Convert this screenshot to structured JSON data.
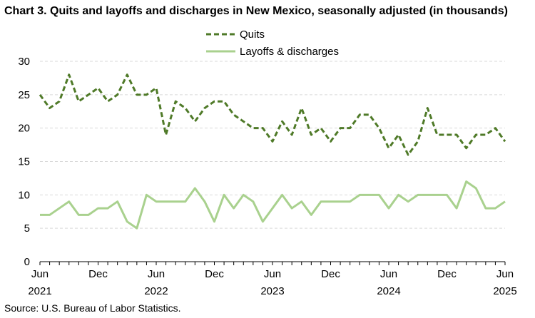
{
  "chart_data": {
    "type": "line",
    "title": "Chart 3. Quits and layoffs and discharges in New Mexico, seasonally adjusted (in thousands)",
    "source": "Source: U.S. Bureau of Labor Statistics.",
    "ylim": [
      0,
      30
    ],
    "yticks": [
      "0",
      "5",
      "10",
      "15",
      "20",
      "25",
      "30"
    ],
    "grid": true,
    "legend_placement": "top-center",
    "x_tick_labels": [
      {
        "index": 0,
        "month": "Jun",
        "year": "2021"
      },
      {
        "index": 6,
        "month": "Dec",
        "year": ""
      },
      {
        "index": 12,
        "month": "Jun",
        "year": "2022"
      },
      {
        "index": 18,
        "month": "Dec",
        "year": ""
      },
      {
        "index": 24,
        "month": "Jun",
        "year": "2023"
      },
      {
        "index": 30,
        "month": "Dec",
        "year": ""
      },
      {
        "index": 36,
        "month": "Jun",
        "year": "2024"
      },
      {
        "index": 42,
        "month": "Dec",
        "year": ""
      },
      {
        "index": 48,
        "month": "Jun",
        "year": "2025"
      }
    ],
    "x": [
      "2021-06",
      "2021-07",
      "2021-08",
      "2021-09",
      "2021-10",
      "2021-11",
      "2021-12",
      "2022-01",
      "2022-02",
      "2022-03",
      "2022-04",
      "2022-05",
      "2022-06",
      "2022-07",
      "2022-08",
      "2022-09",
      "2022-10",
      "2022-11",
      "2022-12",
      "2023-01",
      "2023-02",
      "2023-03",
      "2023-04",
      "2023-05",
      "2023-06",
      "2023-07",
      "2023-08",
      "2023-09",
      "2023-10",
      "2023-11",
      "2023-12",
      "2024-01",
      "2024-02",
      "2024-03",
      "2024-04",
      "2024-05",
      "2024-06",
      "2024-07",
      "2024-08",
      "2024-09",
      "2024-10",
      "2024-11",
      "2024-12",
      "2025-01",
      "2025-02",
      "2025-03",
      "2025-04",
      "2025-05",
      "2025-06"
    ],
    "series": [
      {
        "name": "Quits",
        "color": "#4f7a28",
        "style": "dashed",
        "values": [
          25,
          23,
          24,
          28,
          24,
          25,
          26,
          24,
          25,
          28,
          25,
          25,
          26,
          19,
          24,
          23,
          21,
          23,
          24,
          24,
          22,
          21,
          20,
          20,
          18,
          21,
          19,
          23,
          19,
          20,
          18,
          20,
          20,
          22,
          22,
          20,
          17,
          19,
          16,
          18,
          23,
          19,
          19,
          19,
          17,
          19,
          19,
          20,
          18
        ]
      },
      {
        "name": "Layoffs & discharges",
        "color": "#a9d18e",
        "style": "solid",
        "values": [
          7,
          7,
          8,
          9,
          7,
          7,
          8,
          8,
          9,
          6,
          5,
          10,
          9,
          9,
          9,
          9,
          11,
          9,
          6,
          10,
          8,
          10,
          9,
          6,
          8,
          10,
          8,
          9,
          7,
          9,
          9,
          9,
          9,
          10,
          10,
          10,
          8,
          10,
          9,
          10,
          10,
          10,
          10,
          8,
          12,
          11,
          8,
          8,
          9
        ]
      }
    ]
  }
}
